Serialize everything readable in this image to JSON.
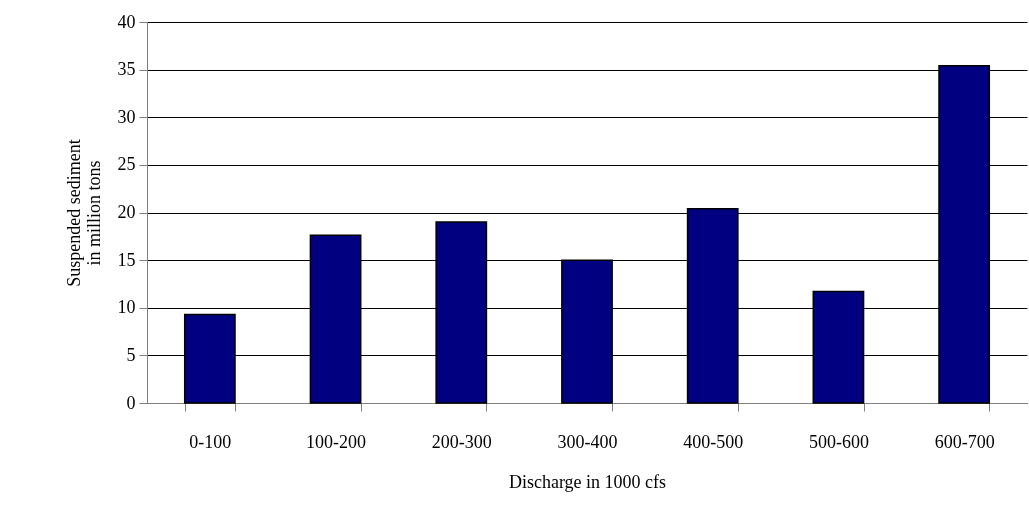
{
  "chart_data": {
    "type": "bar",
    "xlabel": "Discharge in 1000 cfs",
    "ylabel": "Suspended sediment\nin million tons",
    "categories": [
      "0-100",
      "100-200",
      "200-300",
      "300-400",
      "400-500",
      "500-600",
      "600-700"
    ],
    "values": [
      9.3,
      17.6,
      19.0,
      15.0,
      20.4,
      11.7,
      35.4
    ],
    "color": "#000080",
    "ylim": [
      0,
      40
    ],
    "yticks": [
      0,
      5,
      10,
      15,
      20,
      25,
      30,
      35,
      40
    ],
    "grid": "y"
  }
}
